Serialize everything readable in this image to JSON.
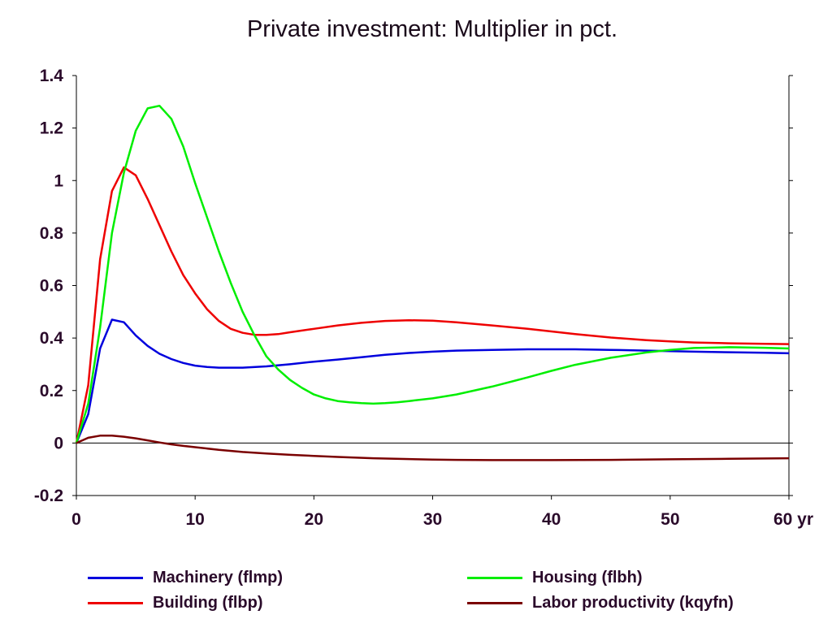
{
  "chart_data": {
    "type": "line",
    "title": "Private investment: Multiplier in pct.",
    "xlabel": "",
    "ylabel": "",
    "x_unit_label": "yr",
    "xlim": [
      0,
      60
    ],
    "ylim": [
      -0.2,
      1.4
    ],
    "x_ticks": [
      0,
      10,
      20,
      30,
      40,
      50,
      60
    ],
    "x_tick_labels": [
      "0",
      "10",
      "20",
      "30",
      "40",
      "50",
      "60 yr"
    ],
    "y_ticks": [
      -0.2,
      0,
      0.2,
      0.4,
      0.6,
      0.8,
      1,
      1.2,
      1.4
    ],
    "y_tick_labels": [
      "-0.2",
      "0",
      "0.2",
      "0.4",
      "0.6",
      "0.8",
      "1",
      "1.2",
      "1.4"
    ],
    "grid": false,
    "legend_position": "bottom",
    "series": [
      {
        "name": "Machinery (flmp)",
        "color": "#0000dd",
        "x": [
          0,
          1,
          2,
          3,
          4,
          5,
          6,
          7,
          8,
          9,
          10,
          11,
          12,
          14,
          16,
          18,
          20,
          22,
          24,
          26,
          28,
          30,
          32,
          35,
          38,
          40,
          42,
          45,
          48,
          50,
          52,
          55,
          58,
          60
        ],
        "y": [
          0,
          0.11,
          0.36,
          0.47,
          0.46,
          0.41,
          0.37,
          0.34,
          0.32,
          0.305,
          0.295,
          0.29,
          0.287,
          0.287,
          0.292,
          0.3,
          0.31,
          0.318,
          0.327,
          0.336,
          0.343,
          0.348,
          0.352,
          0.355,
          0.357,
          0.357,
          0.357,
          0.355,
          0.352,
          0.35,
          0.348,
          0.346,
          0.344,
          0.342
        ]
      },
      {
        "name": "Building (flbp)",
        "color": "#ee0000",
        "x": [
          0,
          1,
          2,
          3,
          4,
          5,
          6,
          7,
          8,
          9,
          10,
          11,
          12,
          13,
          14,
          15,
          16,
          17,
          18,
          20,
          22,
          24,
          26,
          28,
          30,
          32,
          35,
          38,
          40,
          42,
          45,
          48,
          50,
          52,
          55,
          58,
          60
        ],
        "y": [
          0,
          0.22,
          0.7,
          0.96,
          1.05,
          1.02,
          0.93,
          0.83,
          0.73,
          0.64,
          0.57,
          0.51,
          0.465,
          0.435,
          0.42,
          0.412,
          0.412,
          0.415,
          0.422,
          0.435,
          0.448,
          0.458,
          0.465,
          0.468,
          0.466,
          0.46,
          0.448,
          0.435,
          0.425,
          0.415,
          0.402,
          0.392,
          0.387,
          0.383,
          0.38,
          0.378,
          0.377
        ]
      },
      {
        "name": "Housing (flbh)",
        "color": "#00ee00",
        "x": [
          0,
          1,
          2,
          3,
          4,
          5,
          6,
          7,
          8,
          9,
          10,
          11,
          12,
          13,
          14,
          15,
          16,
          17,
          18,
          19,
          20,
          21,
          22,
          23,
          24,
          25,
          26,
          27,
          28,
          30,
          32,
          35,
          38,
          40,
          42,
          45,
          48,
          50,
          52,
          55,
          58,
          60
        ],
        "y": [
          0,
          0.15,
          0.44,
          0.8,
          1.03,
          1.19,
          1.275,
          1.285,
          1.235,
          1.13,
          0.99,
          0.86,
          0.73,
          0.61,
          0.5,
          0.41,
          0.33,
          0.28,
          0.24,
          0.21,
          0.185,
          0.17,
          0.16,
          0.155,
          0.152,
          0.15,
          0.152,
          0.155,
          0.16,
          0.17,
          0.185,
          0.215,
          0.25,
          0.275,
          0.298,
          0.325,
          0.345,
          0.355,
          0.362,
          0.365,
          0.363,
          0.36
        ]
      },
      {
        "name": "Labor productivity (kqyfn)",
        "color": "#7a0000",
        "x": [
          0,
          1,
          2,
          3,
          4,
          5,
          6,
          7,
          8,
          9,
          10,
          12,
          14,
          16,
          18,
          20,
          22,
          25,
          28,
          30,
          32,
          35,
          40,
          45,
          50,
          55,
          60
        ],
        "y": [
          0,
          0.02,
          0.028,
          0.028,
          0.024,
          0.018,
          0.01,
          0.002,
          -0.005,
          -0.011,
          -0.016,
          -0.026,
          -0.034,
          -0.04,
          -0.045,
          -0.049,
          -0.053,
          -0.058,
          -0.061,
          -0.063,
          -0.064,
          -0.065,
          -0.065,
          -0.064,
          -0.062,
          -0.06,
          -0.058
        ]
      }
    ]
  }
}
